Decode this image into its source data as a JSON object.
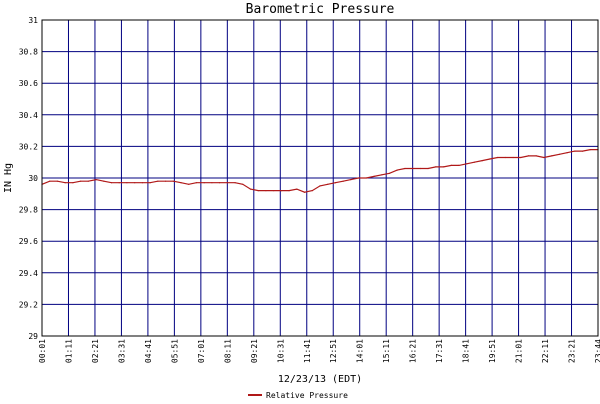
{
  "chart_data": {
    "type": "line",
    "title": "Barometric Pressure",
    "xlabel": "12/23/13 (EDT)",
    "ylabel": "IN Hg",
    "ylim": [
      29,
      31
    ],
    "y_ticks": [
      "29",
      "29.2",
      "29.4",
      "29.6",
      "29.8",
      "30",
      "30.2",
      "30.4",
      "30.6",
      "30.8",
      "31"
    ],
    "x_ticks": [
      "00:01",
      "01:11",
      "02:21",
      "03:31",
      "04:41",
      "05:51",
      "07:01",
      "08:11",
      "09:21",
      "10:31",
      "11:41",
      "12:51",
      "14:01",
      "15:11",
      "16:21",
      "17:31",
      "18:41",
      "19:51",
      "21:01",
      "22:11",
      "23:21",
      "23:44"
    ],
    "grid": true,
    "legend_position": "bottom-center",
    "series": [
      {
        "name": "Relative Pressure",
        "color": "#b01818",
        "values": [
          29.96,
          29.98,
          29.98,
          29.97,
          29.97,
          29.98,
          29.98,
          29.99,
          29.98,
          29.97,
          29.97,
          29.97,
          29.97,
          29.97,
          29.97,
          29.98,
          29.98,
          29.98,
          29.97,
          29.96,
          29.97,
          29.97,
          29.97,
          29.97,
          29.97,
          29.97,
          29.96,
          29.93,
          29.92,
          29.92,
          29.92,
          29.92,
          29.92,
          29.93,
          29.91,
          29.92,
          29.95,
          29.96,
          29.97,
          29.98,
          29.99,
          30.0,
          30.0,
          30.01,
          30.02,
          30.03,
          30.05,
          30.06,
          30.06,
          30.06,
          30.06,
          30.07,
          30.07,
          30.08,
          30.08,
          30.09,
          30.1,
          30.11,
          30.12,
          30.13,
          30.13,
          30.13,
          30.13,
          30.14,
          30.14,
          30.13,
          30.14,
          30.15,
          30.16,
          30.17,
          30.17,
          30.18,
          30.18
        ]
      }
    ]
  }
}
